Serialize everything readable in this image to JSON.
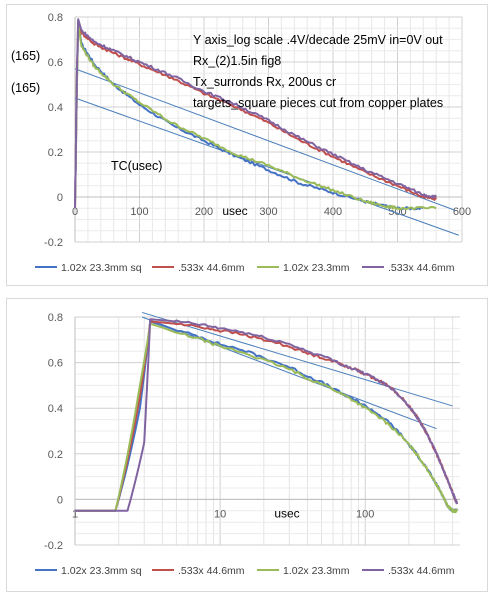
{
  "chart_data": [
    {
      "type": "line",
      "x_scale": "linear",
      "xlim": [
        0,
        600
      ],
      "ylim": [
        -0.2,
        0.8
      ],
      "grid": true,
      "legend_position": "bottom",
      "x_ticks": [
        "0",
        "100",
        "200",
        "300",
        "400",
        "500",
        "600"
      ],
      "y_ticks": [
        "0.8",
        "0.6",
        "0.4",
        "0.2",
        "0",
        "-0.2"
      ],
      "xlabel": "usec",
      "annotations": {
        "title_lines": [
          "Y axis_log scale .4V/decade 25mV in=0V out",
          "Rx_(2)1.5in fig8",
          "Tx_surronds Rx, 200us cr",
          "targets_square pieces cut from copper plates"
        ],
        "tc_label": "TC(usec)",
        "marker_upper": "(165)",
        "marker_lower": "(165)"
      },
      "series": [
        {
          "name": "1.02x 23.3mm sq",
          "color": "#4472c4",
          "x": [
            0,
            3,
            5,
            8,
            10,
            30,
            60,
            100,
            150,
            200,
            250,
            300,
            350,
            400,
            450,
            480,
            500,
            540
          ],
          "y": [
            -0.05,
            0.5,
            0.78,
            0.72,
            0.68,
            0.59,
            0.5,
            0.41,
            0.32,
            0.25,
            0.18,
            0.12,
            0.06,
            0.02,
            -0.02,
            -0.04,
            -0.05,
            -0.05
          ]
        },
        {
          "name": ".533x 44.6mm",
          "color": "#c0504d",
          "x": [
            0,
            3,
            5,
            8,
            10,
            30,
            60,
            100,
            150,
            200,
            250,
            300,
            350,
            400,
            450,
            500,
            540,
            560
          ],
          "y": [
            -0.05,
            0.55,
            0.78,
            0.75,
            0.73,
            0.68,
            0.64,
            0.59,
            0.53,
            0.46,
            0.4,
            0.33,
            0.25,
            0.18,
            0.11,
            0.05,
            0.0,
            -0.01
          ]
        },
        {
          "name": "1.02x 23.3mm",
          "color": "#9bbb59",
          "x": [
            0,
            3,
            5,
            8,
            10,
            30,
            60,
            100,
            150,
            200,
            250,
            300,
            350,
            400,
            450,
            480,
            500,
            560
          ],
          "y": [
            -0.05,
            0.5,
            0.77,
            0.71,
            0.67,
            0.58,
            0.5,
            0.42,
            0.33,
            0.26,
            0.19,
            0.14,
            0.08,
            0.03,
            -0.02,
            -0.04,
            -0.05,
            -0.05
          ]
        },
        {
          "name": ".533x 44.6mm",
          "color": "#8064a2",
          "x": [
            0,
            3,
            5,
            8,
            10,
            30,
            60,
            100,
            150,
            200,
            250,
            300,
            350,
            400,
            450,
            500,
            540,
            560
          ],
          "y": [
            -0.05,
            0.55,
            0.79,
            0.76,
            0.74,
            0.69,
            0.65,
            0.6,
            0.54,
            0.47,
            0.41,
            0.34,
            0.26,
            0.19,
            0.12,
            0.06,
            0.01,
            0.0
          ]
        }
      ],
      "reference_lines": [
        {
          "color": "#4a7ebb",
          "x": [
            0,
            590
          ],
          "y": [
            0.57,
            -0.06
          ]
        },
        {
          "color": "#4a7ebb",
          "x": [
            0,
            595
          ],
          "y": [
            0.44,
            -0.17
          ]
        }
      ]
    },
    {
      "type": "line",
      "x_scale": "log",
      "xlim": [
        1,
        450
      ],
      "ylim": [
        -0.2,
        0.8
      ],
      "grid": true,
      "legend_position": "bottom",
      "x_ticks": [
        "1",
        "10",
        "100"
      ],
      "y_ticks": [
        "0.8",
        "0.6",
        "0.4",
        "0.2",
        "0",
        "-0.2"
      ],
      "xlabel": "usec",
      "series": [
        {
          "name": "1.02x 23.3mm sq",
          "color": "#4472c4",
          "x": [
            1,
            1.9,
            2.8,
            3.3,
            5,
            10,
            20,
            40,
            70,
            100,
            150,
            200,
            250,
            300,
            340,
            370,
            400,
            430
          ],
          "y": [
            -0.05,
            -0.05,
            0.4,
            0.78,
            0.74,
            0.68,
            0.62,
            0.54,
            0.46,
            0.41,
            0.33,
            0.24,
            0.16,
            0.08,
            0.02,
            -0.03,
            -0.05,
            -0.05
          ]
        },
        {
          "name": ".533x 44.6mm",
          "color": "#c0504d",
          "x": [
            1,
            1.9,
            2.8,
            3.3,
            5,
            10,
            20,
            40,
            70,
            100,
            150,
            200,
            250,
            300,
            350,
            400,
            430
          ],
          "y": [
            -0.05,
            -0.05,
            0.45,
            0.78,
            0.77,
            0.74,
            0.7,
            0.64,
            0.59,
            0.55,
            0.49,
            0.41,
            0.32,
            0.22,
            0.12,
            0.03,
            -0.02
          ]
        },
        {
          "name": "1.02x 23.3mm",
          "color": "#9bbb59",
          "x": [
            1,
            1.9,
            2.8,
            3.3,
            5,
            10,
            20,
            40,
            70,
            100,
            150,
            200,
            250,
            300,
            340,
            370,
            400,
            430
          ],
          "y": [
            -0.05,
            -0.05,
            0.5,
            0.77,
            0.73,
            0.67,
            0.61,
            0.53,
            0.46,
            0.4,
            0.32,
            0.24,
            0.16,
            0.08,
            0.02,
            -0.03,
            -0.05,
            -0.05
          ]
        },
        {
          "name": ".533x 44.6mm",
          "color": "#8064a2",
          "x": [
            1,
            2.3,
            3.0,
            3.3,
            5,
            10,
            20,
            40,
            70,
            100,
            150,
            200,
            250,
            300,
            350,
            400,
            430
          ],
          "y": [
            -0.05,
            -0.05,
            0.25,
            0.79,
            0.78,
            0.75,
            0.71,
            0.65,
            0.59,
            0.55,
            0.49,
            0.41,
            0.32,
            0.22,
            0.12,
            0.03,
            -0.02
          ]
        }
      ],
      "reference_lines": [
        {
          "color": "#4a7ebb",
          "x": [
            2.9,
            400
          ],
          "y": [
            0.82,
            0.41
          ]
        },
        {
          "color": "#4a7ebb",
          "x": [
            2.9,
            310
          ],
          "y": [
            0.8,
            0.31
          ]
        }
      ]
    }
  ]
}
